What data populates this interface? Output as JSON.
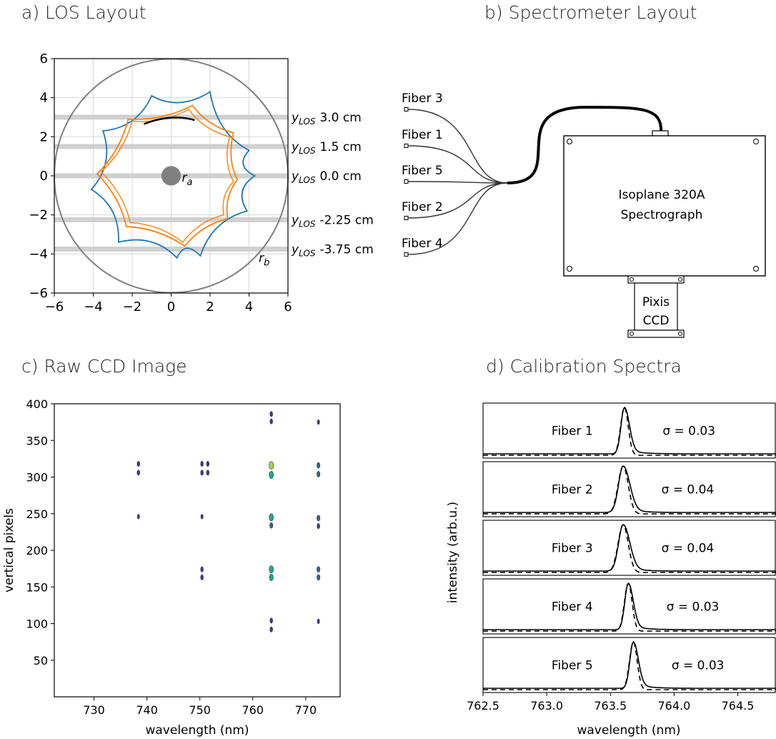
{
  "chart_data": [
    {
      "panel": "a",
      "type": "diagram-plot",
      "title": "a) LOS Layout",
      "xlim": [
        -6,
        6
      ],
      "ylim": [
        -6,
        6
      ],
      "xticks": [
        -6,
        -4,
        -2,
        0,
        2,
        4,
        6
      ],
      "yticks": [
        -6,
        -4,
        -2,
        0,
        2,
        4,
        6
      ],
      "xtick_labels": [
        "−6",
        "−4",
        "−2",
        "0",
        "2",
        "4",
        "6"
      ],
      "ytick_labels": [
        "−6",
        "−4",
        "−2",
        "0",
        "2",
        "4",
        "6"
      ],
      "grid": true,
      "outer_radius": 6,
      "inner_radius": 0.5,
      "label_ra": "r",
      "label_ra_sub": "a",
      "label_rb": "r",
      "label_rb_sub": "b",
      "los_lines": [
        {
          "y": 3.0,
          "prefix": "y",
          "sub": "LOS",
          "value": "3.0 cm"
        },
        {
          "y": 1.5,
          "prefix": "y",
          "sub": "LOS",
          "value": "1.5 cm"
        },
        {
          "y": 0.0,
          "prefix": "y",
          "sub": "LOS",
          "value": "0.0 cm"
        },
        {
          "y": -2.25,
          "prefix": "y",
          "sub": "LOS",
          "value": "-2.25 cm"
        },
        {
          "y": -3.75,
          "prefix": "y",
          "sub": "LOS",
          "value": "-3.75 cm"
        }
      ],
      "colors": {
        "blue": "#1f77b4",
        "orange": "#ff7f0e",
        "circle": "#808080",
        "los": "#d0d0d0"
      }
    },
    {
      "panel": "b",
      "type": "diagram",
      "title": "b) Spectrometer Layout",
      "fibers": [
        "Fiber 3",
        "Fiber 1",
        "Fiber 5",
        "Fiber 2",
        "Fiber 4"
      ],
      "spectrograph": [
        "Isoplane 320A",
        "Spectrograph"
      ],
      "ccd": [
        "Pixis",
        "CCD"
      ]
    },
    {
      "panel": "c",
      "type": "scatter",
      "title": "c) Raw CCD Image",
      "xlabel": "wavelength (nm)",
      "ylabel": "vertical pixels",
      "xlim": [
        722.5,
        776.5
      ],
      "ylim": [
        0,
        400
      ],
      "xticks": [
        730,
        740,
        750,
        760,
        770
      ],
      "yticks": [
        50,
        100,
        150,
        200,
        250,
        300,
        350,
        400
      ],
      "spots": [
        {
          "x": 738.4,
          "y": 318,
          "v": 0.2
        },
        {
          "x": 738.4,
          "y": 306,
          "v": 0.2
        },
        {
          "x": 738.4,
          "y": 246,
          "v": 0.1
        },
        {
          "x": 750.4,
          "y": 318,
          "v": 0.2
        },
        {
          "x": 750.4,
          "y": 306,
          "v": 0.2
        },
        {
          "x": 751.5,
          "y": 318,
          "v": 0.2
        },
        {
          "x": 751.5,
          "y": 306,
          "v": 0.2
        },
        {
          "x": 750.4,
          "y": 246,
          "v": 0.1
        },
        {
          "x": 750.4,
          "y": 174,
          "v": 0.2
        },
        {
          "x": 750.4,
          "y": 163,
          "v": 0.2
        },
        {
          "x": 763.5,
          "y": 386,
          "v": 0.2
        },
        {
          "x": 763.5,
          "y": 376,
          "v": 0.2
        },
        {
          "x": 763.5,
          "y": 316,
          "v": 0.7
        },
        {
          "x": 763.5,
          "y": 303,
          "v": 0.6
        },
        {
          "x": 763.5,
          "y": 245,
          "v": 0.6
        },
        {
          "x": 763.5,
          "y": 234,
          "v": 0.3
        },
        {
          "x": 763.5,
          "y": 174,
          "v": 0.6
        },
        {
          "x": 763.5,
          "y": 163,
          "v": 0.5
        },
        {
          "x": 763.5,
          "y": 104,
          "v": 0.2
        },
        {
          "x": 763.5,
          "y": 92,
          "v": 0.2
        },
        {
          "x": 772.4,
          "y": 375,
          "v": 0.1
        },
        {
          "x": 772.4,
          "y": 316,
          "v": 0.3
        },
        {
          "x": 772.4,
          "y": 304,
          "v": 0.3
        },
        {
          "x": 772.4,
          "y": 244,
          "v": 0.3
        },
        {
          "x": 772.4,
          "y": 233,
          "v": 0.2
        },
        {
          "x": 772.4,
          "y": 174,
          "v": 0.3
        },
        {
          "x": 772.4,
          "y": 163,
          "v": 0.3
        },
        {
          "x": 772.4,
          "y": 103,
          "v": 0.1
        }
      ]
    },
    {
      "panel": "d",
      "type": "line",
      "title": "d) Calibration Spectra",
      "xlabel": "wavelength (nm)",
      "ylabel": "intensity (arb.u.)",
      "xlim": [
        762.5,
        764.8
      ],
      "xticks": [
        762.5,
        763.0,
        763.5,
        764.0,
        764.5
      ],
      "xtick_labels": [
        "762.5",
        "763.0",
        "763.5",
        "764.0",
        "764.5"
      ],
      "panels": [
        {
          "label": "Fiber 1",
          "sigma_text": "σ  = 0.03",
          "center": 763.61,
          "sigma": 0.03
        },
        {
          "label": "Fiber 2",
          "sigma_text": "σ  = 0.04",
          "center": 763.6,
          "sigma": 0.04
        },
        {
          "label": "Fiber 3",
          "sigma_text": "σ  = 0.04",
          "center": 763.6,
          "sigma": 0.04
        },
        {
          "label": "Fiber 4",
          "sigma_text": "σ  = 0.03",
          "center": 763.64,
          "sigma": 0.03
        },
        {
          "label": "Fiber 5",
          "sigma_text": "σ  = 0.03",
          "center": 763.68,
          "sigma": 0.03
        }
      ]
    }
  ]
}
